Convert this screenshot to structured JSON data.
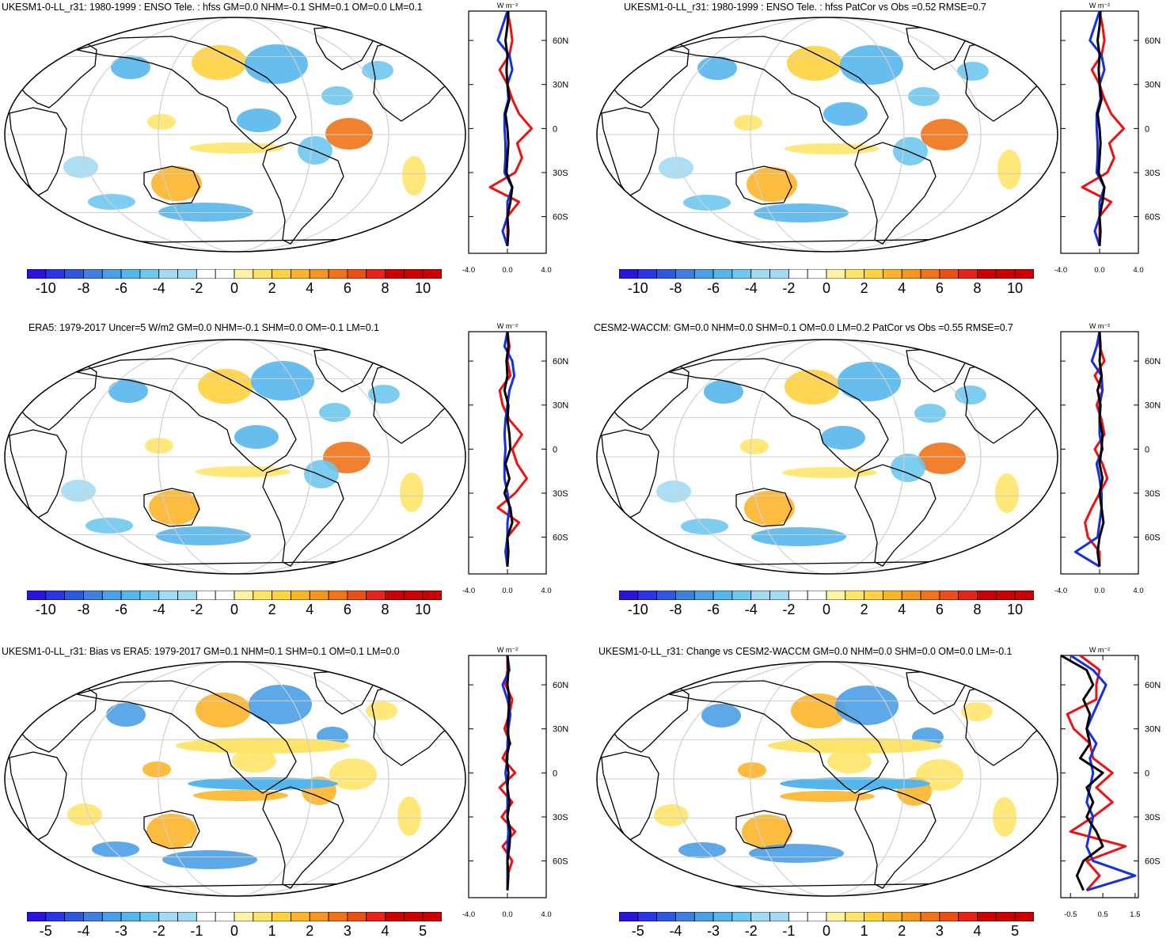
{
  "panels": [
    {
      "title": "UKESM1-0-LL_r31: 1980-1999 : ENSO Tele. : hfss GM=0.0 NHM=-0.1 SHM=0.1 OM=0.0 LM=0.1",
      "colorbar_labels": [
        "-10",
        "-8",
        "-6",
        "-4",
        "-2",
        "0",
        "2",
        "4",
        "6",
        "8",
        "10"
      ],
      "profile_xticks": [
        "-4.0",
        "0.0",
        "4.0"
      ],
      "profile_unit": "W m⁻²",
      "lat_labels": [
        "60N",
        "30N",
        "0",
        "30S",
        "60S"
      ]
    },
    {
      "title": "UKESM1-0-LL_r31: 1980-1999 : ENSO Tele. : hfss PatCor vs Obs =0.52 RMSE=0.7",
      "colorbar_labels": [
        "-10",
        "-8",
        "-6",
        "-4",
        "-2",
        "0",
        "2",
        "4",
        "6",
        "8",
        "10"
      ],
      "profile_xticks": [
        "-4.0",
        "0.0",
        "4.0"
      ],
      "profile_unit": "W m⁻²",
      "lat_labels": [
        "60N",
        "30N",
        "0",
        "30S",
        "60S"
      ]
    },
    {
      "title": "ERA5: 1979-2017 Uncer=5 W/m2 GM=0.0 NHM=-0.1 SHM=0.0 OM=-0.1 LM=0.1",
      "colorbar_labels": [
        "-10",
        "-8",
        "-6",
        "-4",
        "-2",
        "0",
        "2",
        "4",
        "6",
        "8",
        "10"
      ],
      "profile_xticks": [
        "-4.0",
        "0.0",
        "4.0"
      ],
      "profile_unit": "W m⁻²",
      "lat_labels": [
        "60N",
        "30N",
        "0",
        "30S",
        "60S"
      ]
    },
    {
      "title": "CESM2-WACCM: GM=0.0 NHM=0.0 SHM=0.1 OM=0.0 LM=0.2 PatCor vs Obs =0.55 RMSE=0.7",
      "colorbar_labels": [
        "-10",
        "-8",
        "-6",
        "-4",
        "-2",
        "0",
        "2",
        "4",
        "6",
        "8",
        "10"
      ],
      "profile_xticks": [
        "-4.0",
        "0.0",
        "4.0"
      ],
      "profile_unit": "W m⁻²",
      "lat_labels": [
        "60N",
        "30N",
        "0",
        "30S",
        "60S"
      ]
    },
    {
      "title": "UKESM1-0-LL_r31: Bias vs ERA5: 1979-2017 GM=0.1 NHM=0.1 SHM=0.1 OM=0.1 LM=0.0",
      "colorbar_labels": [
        "-5",
        "-4",
        "-3",
        "-2",
        "-1",
        "0",
        "1",
        "2",
        "3",
        "4",
        "5"
      ],
      "profile_xticks": [
        "-4.0",
        "0.0",
        "4.0"
      ],
      "profile_unit": "W m⁻²",
      "lat_labels": [
        "60N",
        "30N",
        "0",
        "30S",
        "60S"
      ]
    },
    {
      "title": "UKESM1-0-LL_r31: Change vs CESM2-WACCM GM=0.0 NHM=0.0 SHM=0.0 OM=0.0 LM=-0.1",
      "colorbar_labels": [
        "-5",
        "-4",
        "-3",
        "-2",
        "-1",
        "0",
        "1",
        "2",
        "3",
        "4",
        "5"
      ],
      "profile_xticks": [
        "-0.5",
        "0.5",
        "1.5"
      ],
      "profile_unit": "W m⁻²",
      "lat_labels": [
        "60N",
        "30N",
        "0",
        "30S",
        "60S"
      ]
    }
  ],
  "palette": [
    "#2a13dc",
    "#2b35e6",
    "#2f58e0",
    "#3f7fe0",
    "#4a9fe6",
    "#55b6ec",
    "#6fc8f0",
    "#a3dcf2",
    "#ffffff",
    "#ffffff",
    "#fff3a6",
    "#ffe46a",
    "#ffd23f",
    "#fcb52a",
    "#f7961f",
    "#f07318",
    "#ea4f15",
    "#e6241a",
    "#cc0000"
  ],
  "chart_data": [
    {
      "type": "heatmap",
      "title": "UKESM1-0-LL_r31: 1980-1999 : ENSO Tele. : hfss GM=0.0 NHM=-0.1 SHM=0.1 OM=0.0 LM=0.1",
      "units": "W m-2",
      "colorbar_range": [
        -11,
        11
      ],
      "zonal_profile": {
        "lat": [
          80,
          70,
          60,
          50,
          40,
          30,
          20,
          10,
          0,
          -10,
          -20,
          -30,
          -40,
          -50,
          -60,
          -70,
          -80
        ],
        "series": [
          {
            "color": "black",
            "values": [
              0.1,
              0.0,
              -0.2,
              0.0,
              -0.1,
              0.0,
              0.2,
              -0.2,
              0.0,
              0.1,
              0.0,
              -0.1,
              0.5,
              0.3,
              0.0,
              0.1,
              0.0
            ]
          },
          {
            "color": "red",
            "values": [
              0.0,
              0.3,
              0.5,
              0.2,
              -0.8,
              0.0,
              0.5,
              1.2,
              2.5,
              1.0,
              1.5,
              0.8,
              -1.8,
              1.2,
              0.0,
              0.0,
              0.0
            ]
          },
          {
            "color": "blue",
            "values": [
              0.0,
              -0.5,
              -1.0,
              0.2,
              0.5,
              0.0,
              0.1,
              -0.3,
              -0.3,
              -0.2,
              -0.2,
              -0.3,
              0.5,
              0.0,
              0.0,
              -0.5,
              0.0
            ]
          }
        ],
        "xlim": [
          -4,
          4
        ]
      }
    },
    {
      "type": "heatmap",
      "title": "UKESM1-0-LL_r31: 1980-1999 : ENSO Tele. : hfss PatCor vs Obs =0.52 RMSE=0.7",
      "units": "W m-2",
      "colorbar_range": [
        -11,
        11
      ],
      "zonal_profile": {
        "lat": [
          80,
          70,
          60,
          50,
          40,
          30,
          20,
          10,
          0,
          -10,
          -20,
          -30,
          -40,
          -50,
          -60,
          -70,
          -80
        ],
        "series": [
          {
            "color": "black",
            "values": [
              0.1,
              0.0,
              -0.2,
              0.0,
              -0.1,
              0.0,
              0.2,
              -0.2,
              0.0,
              0.1,
              0.0,
              -0.1,
              0.5,
              0.3,
              0.0,
              0.1,
              0.0
            ]
          },
          {
            "color": "red",
            "values": [
              0.0,
              0.3,
              0.5,
              0.2,
              -0.8,
              0.0,
              0.5,
              1.2,
              2.5,
              1.0,
              1.5,
              0.8,
              -1.8,
              1.2,
              0.0,
              0.0,
              0.0
            ]
          },
          {
            "color": "blue",
            "values": [
              0.0,
              -0.5,
              -1.0,
              0.2,
              0.5,
              0.0,
              0.1,
              -0.3,
              -0.3,
              -0.2,
              -0.2,
              -0.3,
              0.5,
              0.0,
              0.0,
              -0.5,
              0.0
            ]
          }
        ],
        "xlim": [
          -4,
          4
        ]
      }
    },
    {
      "type": "heatmap",
      "title": "ERA5: 1979-2017 Uncer=5 W/m2 GM=0.0 NHM=-0.1 SHM=0.0 OM=-0.1 LM=0.1",
      "units": "W m-2",
      "colorbar_range": [
        -11,
        11
      ],
      "zonal_profile": {
        "lat": [
          80,
          70,
          60,
          50,
          40,
          30,
          20,
          10,
          0,
          -10,
          -20,
          -30,
          -40,
          -50,
          -60,
          -70,
          -80
        ],
        "series": [
          {
            "color": "black",
            "values": [
              0.0,
              0.1,
              -0.1,
              0.0,
              -0.3,
              0.1,
              0.0,
              0.2,
              0.3,
              -0.2,
              0.2,
              -0.3,
              0.3,
              0.5,
              0.0,
              0.1,
              0.0
            ]
          },
          {
            "color": "red",
            "values": [
              0.0,
              0.2,
              0.0,
              0.3,
              -0.8,
              -0.5,
              0.2,
              1.5,
              0.5,
              1.0,
              2.0,
              0.8,
              -1.0,
              1.2,
              0.0,
              0.0,
              0.0
            ]
          },
          {
            "color": "blue",
            "values": [
              0.0,
              -0.3,
              0.5,
              0.7,
              0.2,
              0.0,
              -0.2,
              -0.3,
              -0.2,
              -0.3,
              -0.3,
              0.0,
              0.2,
              0.0,
              0.0,
              -0.2,
              0.0
            ]
          }
        ],
        "xlim": [
          -4,
          4
        ]
      }
    },
    {
      "type": "heatmap",
      "title": "CESM2-WACCM: GM=0.0 NHM=0.0 SHM=0.1 OM=0.0 LM=0.2 PatCor vs Obs =0.55 RMSE=0.7",
      "units": "W m-2",
      "colorbar_range": [
        -11,
        11
      ],
      "zonal_profile": {
        "lat": [
          80,
          70,
          60,
          50,
          40,
          30,
          20,
          10,
          0,
          -10,
          -20,
          -30,
          -40,
          -50,
          -60,
          -70,
          -80
        ],
        "series": [
          {
            "color": "black",
            "values": [
              0.0,
              0.1,
              0.0,
              0.2,
              -0.2,
              0.1,
              0.0,
              0.3,
              0.2,
              0.0,
              0.3,
              0.0,
              0.2,
              0.4,
              0.0,
              -0.2,
              0.0
            ]
          },
          {
            "color": "red",
            "values": [
              0.0,
              0.0,
              0.5,
              -0.5,
              0.3,
              -0.3,
              0.2,
              0.5,
              -0.5,
              0.3,
              0.8,
              0.0,
              -0.8,
              -1.5,
              -1.2,
              0.0,
              0.0
            ]
          },
          {
            "color": "blue",
            "values": [
              0.0,
              -0.3,
              -0.8,
              0.2,
              0.3,
              0.0,
              0.0,
              0.0,
              0.3,
              -0.3,
              0.0,
              0.2,
              0.2,
              0.0,
              -0.2,
              -2.5,
              0.0
            ]
          }
        ],
        "xlim": [
          -4,
          4
        ]
      }
    },
    {
      "type": "heatmap",
      "title": "UKESM1-0-LL_r31: Bias vs ERA5: 1979-2017 GM=0.1 NHM=0.1 SHM=0.1 OM=0.1 LM=0.0",
      "units": "W m-2",
      "colorbar_range": [
        -5.5,
        5.5
      ],
      "zonal_profile": {
        "lat": [
          80,
          70,
          60,
          50,
          40,
          30,
          20,
          10,
          0,
          -10,
          -20,
          -30,
          -40,
          -50,
          -60,
          -70,
          -80
        ],
        "series": [
          {
            "color": "black",
            "values": [
              0.0,
              0.1,
              0.0,
              0.2,
              0.1,
              0.0,
              0.2,
              -0.1,
              0.1,
              0.0,
              0.2,
              0.0,
              0.3,
              0.2,
              0.0,
              0.1,
              0.0
            ]
          },
          {
            "color": "red",
            "values": [
              0.0,
              0.0,
              -0.2,
              0.5,
              0.2,
              -0.3,
              0.3,
              -0.5,
              0.8,
              -0.8,
              0.5,
              -0.6,
              0.8,
              -0.5,
              0.5,
              0.0,
              0.0
            ]
          },
          {
            "color": "blue",
            "values": [
              0.0,
              0.2,
              -0.5,
              0.0,
              0.3,
              0.1,
              0.0,
              0.0,
              -0.2,
              0.0,
              0.0,
              0.0,
              0.1,
              0.0,
              0.0,
              0.0,
              0.0
            ]
          }
        ],
        "xlim": [
          -4,
          4
        ]
      }
    },
    {
      "type": "heatmap",
      "title": "UKESM1-0-LL_r31: Change vs CESM2-WACCM GM=0.0 NHM=0.0 SHM=0.0 OM=0.0 LM=-0.1",
      "units": "W m-2",
      "colorbar_range": [
        -5.5,
        5.5
      ],
      "zonal_profile": {
        "lat": [
          80,
          70,
          60,
          50,
          40,
          30,
          20,
          10,
          0,
          -10,
          -20,
          -30,
          -40,
          -50,
          -60,
          -70,
          -80
        ],
        "series": [
          {
            "color": "black",
            "values": [
              -0.8,
              0.0,
              0.2,
              -0.1,
              0.1,
              0.0,
              0.1,
              -0.2,
              0.5,
              0.0,
              0.2,
              0.0,
              0.3,
              0.5,
              -0.1,
              -0.3,
              -0.1
            ]
          },
          {
            "color": "red",
            "values": [
              -0.2,
              0.4,
              0.3,
              0.3,
              -0.6,
              -0.4,
              0.1,
              0.2,
              0.8,
              0.3,
              0.8,
              0.2,
              -0.5,
              1.2,
              0.0,
              0.4,
              0.0
            ]
          },
          {
            "color": "blue",
            "values": [
              -0.5,
              0.2,
              0.6,
              0.4,
              0.2,
              0.0,
              0.3,
              0.1,
              0.2,
              0.1,
              0.0,
              0.2,
              0.1,
              0.0,
              0.2,
              1.5,
              0.0
            ]
          }
        ],
        "xlim": [
          -0.8,
          1.6
        ]
      }
    }
  ]
}
